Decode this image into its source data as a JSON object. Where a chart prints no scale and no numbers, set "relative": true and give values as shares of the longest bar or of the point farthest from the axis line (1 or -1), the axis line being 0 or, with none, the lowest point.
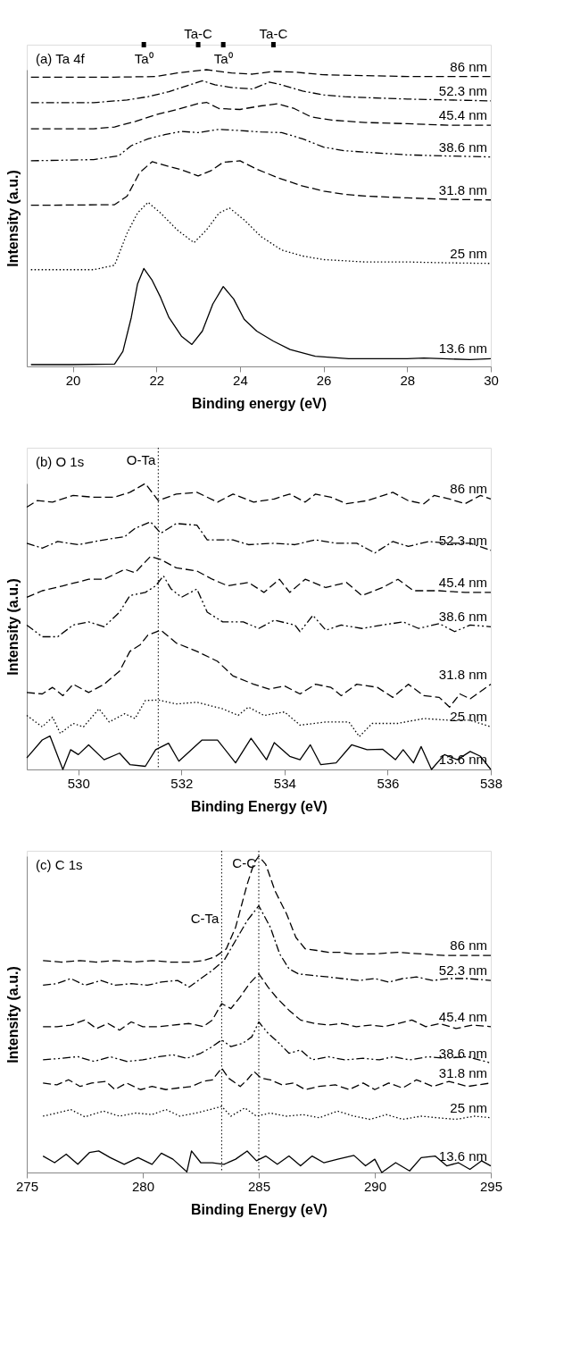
{
  "chart_data": [
    {
      "type": "line",
      "relative": true,
      "xlabel": "Binding energy (eV)",
      "ylabel": "Intensity (a.u.)",
      "xlim": [
        18.9,
        30
      ],
      "xticks": [
        20,
        22,
        24,
        26,
        28,
        30
      ],
      "annotations": [
        "(a) Ta 4f"
      ],
      "ref_lines": [
        {
          "axis": "x",
          "value": 21.7,
          "label": "Ta⁰",
          "color": "#000000"
        },
        {
          "axis": "x",
          "value": 23.0,
          "label": "Ta-C",
          "color": "#000000"
        },
        {
          "axis": "x",
          "value": 23.6,
          "label": "Ta⁰",
          "color": "#000000"
        },
        {
          "axis": "x",
          "value": 24.8,
          "label": "Ta-C",
          "color": "#000000"
        }
      ],
      "series": [
        {
          "name": "13.6 nm",
          "color": "#000000",
          "line_style": "solid",
          "x": [
            19,
            20,
            21,
            21.2,
            21.4,
            21.55,
            21.7,
            21.9,
            22.1,
            22.3,
            22.6,
            22.85,
            23.1,
            23.35,
            23.6,
            23.85,
            24.1,
            24.4,
            24.8,
            25.2,
            25.8,
            26.6,
            28,
            28.4,
            29.5,
            30
          ],
          "values": [
            0.006,
            0.006,
            0.008,
            0.051,
            0.165,
            0.278,
            0.33,
            0.29,
            0.233,
            0.165,
            0.102,
            0.074,
            0.119,
            0.21,
            0.269,
            0.227,
            0.159,
            0.119,
            0.085,
            0.057,
            0.034,
            0.026,
            0.026,
            0.028,
            0.023,
            0.026
          ]
        },
        {
          "name": "25 nm",
          "color": "#000000",
          "line_style": "dotted",
          "x": [
            19,
            20.5,
            21.0,
            21.3,
            21.55,
            21.8,
            22.1,
            22.5,
            22.9,
            23.2,
            23.5,
            23.75,
            24.1,
            24.5,
            25.0,
            25.5,
            26,
            27,
            28,
            29,
            30
          ],
          "values": [
            0.326,
            0.326,
            0.341,
            0.449,
            0.517,
            0.553,
            0.517,
            0.46,
            0.417,
            0.46,
            0.517,
            0.534,
            0.494,
            0.438,
            0.392,
            0.372,
            0.36,
            0.352,
            0.352,
            0.349,
            0.347
          ]
        },
        {
          "name": "31.8 nm",
          "color": "#000000",
          "line_style": "dashed",
          "x": [
            19,
            21,
            21.3,
            21.6,
            21.9,
            22.3,
            22.6,
            23.0,
            23.3,
            23.6,
            24.0,
            24.4,
            24.9,
            25.5,
            26,
            26.5,
            27,
            28,
            29,
            30
          ],
          "values": [
            0.543,
            0.545,
            0.574,
            0.653,
            0.69,
            0.674,
            0.663,
            0.642,
            0.659,
            0.688,
            0.693,
            0.665,
            0.636,
            0.608,
            0.591,
            0.58,
            0.574,
            0.568,
            0.563,
            0.561
          ]
        },
        {
          "name": "38.6 nm",
          "color": "#000000",
          "line_style": "dashdotdot",
          "x": [
            19,
            20.5,
            21.1,
            21.4,
            21.8,
            22.2,
            22.6,
            23.0,
            23.5,
            24,
            24.5,
            25.0,
            25.5,
            26,
            26.5,
            27,
            28,
            29,
            30
          ],
          "values": [
            0.693,
            0.697,
            0.71,
            0.744,
            0.767,
            0.781,
            0.792,
            0.788,
            0.799,
            0.795,
            0.79,
            0.788,
            0.767,
            0.739,
            0.727,
            0.722,
            0.713,
            0.709,
            0.706
          ]
        },
        {
          "name": "45.4 nm",
          "color": "#000000",
          "line_style": "dashed",
          "x": [
            19,
            20.5,
            21,
            21.5,
            22,
            22.5,
            23.0,
            23.2,
            23.5,
            24,
            24.5,
            24.9,
            25.3,
            25.7,
            26.2,
            27,
            28,
            29,
            30
          ],
          "values": [
            0.801,
            0.801,
            0.807,
            0.826,
            0.849,
            0.866,
            0.886,
            0.89,
            0.869,
            0.866,
            0.878,
            0.885,
            0.869,
            0.841,
            0.83,
            0.822,
            0.818,
            0.813,
            0.813
          ]
        },
        {
          "name": "52.3 nm",
          "color": "#000000",
          "line_style": "dashdot",
          "x": [
            19,
            20.5,
            21.3,
            21.8,
            22.3,
            22.8,
            23.1,
            23.4,
            23.8,
            24.3,
            24.7,
            25,
            25.5,
            26,
            26.5,
            27,
            28,
            29,
            30
          ],
          "values": [
            0.889,
            0.889,
            0.898,
            0.909,
            0.926,
            0.949,
            0.963,
            0.949,
            0.94,
            0.935,
            0.958,
            0.949,
            0.928,
            0.915,
            0.909,
            0.906,
            0.901,
            0.898,
            0.895
          ]
        },
        {
          "name": "86 nm",
          "color": "#000000",
          "line_style": "dashed",
          "x": [
            19,
            21,
            22,
            22.5,
            23.2,
            23.8,
            24.3,
            24.8,
            25.3,
            26,
            27,
            28,
            30
          ],
          "values": [
            0.975,
            0.975,
            0.977,
            0.989,
            1.0,
            0.989,
            0.985,
            0.994,
            0.992,
            0.983,
            0.98,
            0.977,
            0.977
          ]
        }
      ]
    },
    {
      "type": "line",
      "relative": true,
      "xlabel": "Binding Energy (eV)",
      "ylabel": "Intensity (a.u.)",
      "xlim": [
        529,
        538
      ],
      "xticks": [
        530,
        532,
        534,
        536,
        538
      ],
      "annotations": [
        "(b) O 1s"
      ],
      "ref_lines": [
        {
          "axis": "x",
          "value": 531.55,
          "label": "O-Ta",
          "line_style": "dotted",
          "color": "#000000"
        }
      ],
      "series": [
        {
          "name": "13.6 nm",
          "color": "#000000",
          "line_style": "solid",
          "x": [
            529,
            529.3,
            529.45,
            529.7,
            529.85,
            530.0,
            530.2,
            530.5,
            530.8,
            531.0,
            531.3,
            531.5,
            531.75,
            531.95,
            532.4,
            532.7,
            533.05,
            533.35,
            533.65,
            533.8,
            534.1,
            534.3,
            534.5,
            534.7,
            535.0,
            535.3,
            535.6,
            535.9,
            536.15,
            536.3,
            536.5,
            536.65,
            536.85,
            537.1,
            537.35,
            537.6,
            537.8,
            538
          ],
          "values": [
            0.04,
            0.103,
            0.117,
            0.0,
            0.069,
            0.052,
            0.086,
            0.034,
            0.057,
            0.017,
            0.011,
            0.069,
            0.092,
            0.029,
            0.103,
            0.103,
            0.023,
            0.109,
            0.034,
            0.094,
            0.046,
            0.034,
            0.086,
            0.017,
            0.023,
            0.086,
            0.069,
            0.071,
            0.034,
            0.069,
            0.023,
            0.08,
            0.0,
            0.052,
            0.034,
            0.063,
            0.046,
            0.0
          ]
        },
        {
          "name": "25 nm",
          "color": "#000000",
          "line_style": "dotted",
          "x": [
            529,
            529.3,
            529.5,
            529.65,
            529.9,
            530.1,
            530.4,
            530.6,
            530.9,
            531.1,
            531.3,
            531.55,
            531.9,
            532.3,
            532.8,
            533.1,
            533.3,
            533.6,
            534.0,
            534.3,
            534.8,
            535.25,
            535.45,
            535.7,
            536.2,
            536.7,
            537.2,
            537.6,
            538
          ],
          "values": [
            0.189,
            0.149,
            0.183,
            0.126,
            0.161,
            0.149,
            0.212,
            0.166,
            0.195,
            0.178,
            0.241,
            0.243,
            0.229,
            0.235,
            0.212,
            0.189,
            0.218,
            0.189,
            0.201,
            0.155,
            0.166,
            0.166,
            0.115,
            0.161,
            0.161,
            0.178,
            0.172,
            0.172,
            0.149
          ]
        },
        {
          "name": "31.8 nm",
          "color": "#000000",
          "line_style": "dashed",
          "x": [
            529,
            529.3,
            529.5,
            529.7,
            529.9,
            530.2,
            530.5,
            530.8,
            531.0,
            531.2,
            531.35,
            531.6,
            531.9,
            532.3,
            532.7,
            533.0,
            533.4,
            533.7,
            534.0,
            534.3,
            534.6,
            534.9,
            535.1,
            535.4,
            535.8,
            536.1,
            536.4,
            536.7,
            537.0,
            537.2,
            537.4,
            537.6,
            538
          ],
          "values": [
            0.269,
            0.264,
            0.287,
            0.258,
            0.298,
            0.269,
            0.298,
            0.344,
            0.413,
            0.436,
            0.47,
            0.487,
            0.442,
            0.413,
            0.378,
            0.327,
            0.298,
            0.281,
            0.292,
            0.264,
            0.298,
            0.287,
            0.258,
            0.298,
            0.287,
            0.252,
            0.298,
            0.258,
            0.252,
            0.218,
            0.264,
            0.247,
            0.298
          ]
        },
        {
          "name": "38.6 nm",
          "color": "#000000",
          "line_style": "dashdotdot",
          "x": [
            529,
            529.3,
            529.6,
            529.9,
            530.2,
            530.5,
            530.8,
            531.0,
            531.3,
            531.5,
            531.65,
            531.8,
            532.0,
            532.3,
            532.5,
            532.8,
            533.2,
            533.5,
            533.8,
            534.2,
            534.3,
            534.55,
            534.8,
            535.1,
            535.5,
            535.9,
            536.3,
            536.6,
            537.0,
            537.3,
            537.6,
            538
          ],
          "values": [
            0.505,
            0.464,
            0.464,
            0.505,
            0.516,
            0.499,
            0.55,
            0.608,
            0.619,
            0.642,
            0.677,
            0.631,
            0.602,
            0.631,
            0.55,
            0.516,
            0.516,
            0.493,
            0.522,
            0.505,
            0.482,
            0.539,
            0.487,
            0.505,
            0.493,
            0.505,
            0.516,
            0.493,
            0.51,
            0.482,
            0.505,
            0.499
          ]
        },
        {
          "name": "45.4 nm",
          "color": "#000000",
          "line_style": "dashed",
          "x": [
            529,
            529.3,
            529.7,
            530.2,
            530.5,
            530.9,
            531.1,
            531.4,
            531.6,
            531.9,
            532.3,
            532.6,
            532.9,
            533.3,
            533.6,
            533.9,
            534.1,
            534.4,
            534.8,
            535.2,
            535.5,
            535.9,
            536.2,
            536.5,
            537,
            537.5,
            538
          ],
          "values": [
            0.602,
            0.625,
            0.642,
            0.665,
            0.665,
            0.7,
            0.688,
            0.745,
            0.734,
            0.705,
            0.694,
            0.665,
            0.642,
            0.654,
            0.619,
            0.665,
            0.619,
            0.665,
            0.636,
            0.654,
            0.608,
            0.636,
            0.665,
            0.625,
            0.625,
            0.619,
            0.619
          ]
        },
        {
          "name": "52.3 nm",
          "color": "#000000",
          "line_style": "dashdot",
          "x": [
            529,
            529.3,
            529.6,
            530.0,
            530.5,
            530.9,
            531.1,
            531.4,
            531.6,
            531.9,
            532.3,
            532.5,
            533.0,
            533.3,
            533.8,
            534.2,
            534.6,
            535.0,
            535.4,
            535.75,
            536.1,
            536.4,
            536.8,
            537.2,
            537.6,
            538
          ],
          "values": [
            0.791,
            0.774,
            0.797,
            0.786,
            0.803,
            0.814,
            0.843,
            0.866,
            0.826,
            0.86,
            0.854,
            0.803,
            0.803,
            0.786,
            0.791,
            0.786,
            0.803,
            0.791,
            0.791,
            0.757,
            0.797,
            0.78,
            0.797,
            0.791,
            0.791,
            0.766
          ]
        },
        {
          "name": "86 nm",
          "color": "#000000",
          "line_style": "dashed",
          "x": [
            529,
            529.2,
            529.5,
            529.9,
            530.3,
            530.7,
            531.0,
            531.3,
            531.55,
            531.9,
            532.3,
            532.7,
            533.0,
            533.4,
            533.8,
            534.1,
            534.4,
            534.6,
            534.9,
            535.2,
            535.6,
            536.1,
            536.4,
            536.7,
            536.9,
            537.2,
            537.5,
            537.8,
            538
          ],
          "values": [
            0.917,
            0.94,
            0.935,
            0.958,
            0.952,
            0.952,
            0.969,
            1.0,
            0.94,
            0.963,
            0.969,
            0.935,
            0.963,
            0.935,
            0.946,
            0.963,
            0.935,
            0.963,
            0.952,
            0.929,
            0.94,
            0.969,
            0.94,
            0.929,
            0.958,
            0.946,
            0.929,
            0.958,
            0.946
          ]
        }
      ]
    },
    {
      "type": "line",
      "relative": true,
      "xlabel": "Binding Energy (eV)",
      "ylabel": "Intensity (a.u.)",
      "xlim": [
        275,
        295
      ],
      "xticks": [
        275,
        280,
        285,
        290,
        295
      ],
      "annotations": [
        "(c) C 1s"
      ],
      "ref_lines": [
        {
          "axis": "x",
          "value": 285.0,
          "label": "C-C",
          "line_style": "dotted",
          "color": "#000000"
        },
        {
          "axis": "x",
          "value": 283.4,
          "label": "C-Ta",
          "line_style": "dotted",
          "color": "#000000"
        }
      ],
      "series": [
        {
          "name": "13.6 nm",
          "color": "#000000",
          "line_style": "solid",
          "x": [
            275.7,
            276.2,
            276.7,
            277.2,
            277.7,
            278.1,
            278.6,
            279.2,
            279.8,
            280.4,
            280.8,
            281.3,
            281.9,
            282.1,
            282.5,
            283.0,
            283.5,
            284.0,
            284.5,
            284.9,
            285.3,
            285.8,
            286.3,
            286.8,
            287.3,
            287.8,
            288.4,
            289.1,
            289.6,
            290.0,
            290.3,
            290.9,
            291.5,
            292.0,
            292.6,
            293.1,
            293.6,
            294.1,
            294.6,
            295
          ],
          "values": [
            0.052,
            0.031,
            0.058,
            0.026,
            0.063,
            0.068,
            0.047,
            0.026,
            0.047,
            0.026,
            0.061,
            0.042,
            0.002,
            0.068,
            0.031,
            0.031,
            0.026,
            0.042,
            0.068,
            0.037,
            0.052,
            0.026,
            0.052,
            0.021,
            0.052,
            0.031,
            0.042,
            0.054,
            0.021,
            0.042,
            0.0,
            0.031,
            0.005,
            0.047,
            0.052,
            0.021,
            0.031,
            0.01,
            0.037,
            0.021
          ]
        },
        {
          "name": "25 nm",
          "color": "#000000",
          "line_style": "dotted",
          "x": [
            275.7,
            276.3,
            276.9,
            277.5,
            278.3,
            279,
            279.7,
            280.4,
            281.0,
            281.6,
            282.3,
            282.9,
            283.4,
            283.8,
            284.4,
            284.9,
            285.5,
            286.2,
            286.9,
            287.6,
            288.4,
            289.1,
            289.8,
            290.5,
            291.2,
            292.0,
            292.7,
            293.5,
            294.3,
            295
          ],
          "values": [
            0.178,
            0.188,
            0.199,
            0.176,
            0.194,
            0.178,
            0.188,
            0.183,
            0.199,
            0.178,
            0.188,
            0.199,
            0.209,
            0.178,
            0.204,
            0.178,
            0.188,
            0.178,
            0.183,
            0.173,
            0.194,
            0.178,
            0.168,
            0.183,
            0.168,
            0.178,
            0.173,
            0.168,
            0.178,
            0.173
          ]
        },
        {
          "name": "31.8 nm",
          "color": "#000000",
          "line_style": "dashed",
          "x": [
            275.7,
            276.3,
            276.8,
            277.3,
            277.8,
            278.4,
            278.8,
            279.3,
            279.9,
            280.4,
            281.0,
            281.5,
            282.1,
            282.6,
            283.0,
            283.4,
            283.7,
            284.2,
            284.5,
            284.8,
            285.1,
            285.5,
            286.0,
            286.5,
            287.0,
            287.6,
            288.3,
            288.9,
            289.5,
            290.0,
            290.6,
            291.2,
            291.8,
            292.5,
            293.2,
            294.0,
            295
          ],
          "values": [
            0.283,
            0.277,
            0.293,
            0.272,
            0.283,
            0.288,
            0.262,
            0.283,
            0.262,
            0.272,
            0.262,
            0.267,
            0.272,
            0.288,
            0.293,
            0.33,
            0.298,
            0.272,
            0.293,
            0.319,
            0.298,
            0.293,
            0.277,
            0.283,
            0.262,
            0.272,
            0.277,
            0.262,
            0.283,
            0.262,
            0.283,
            0.267,
            0.293,
            0.272,
            0.288,
            0.272,
            0.283
          ]
        },
        {
          "name": "38.6 nm",
          "color": "#000000",
          "line_style": "dashdotdot",
          "x": [
            275.7,
            276.5,
            277.2,
            277.9,
            278.6,
            279.3,
            280.0,
            280.7,
            281.3,
            281.9,
            282.5,
            283.0,
            283.4,
            283.8,
            284.3,
            284.7,
            285.0,
            285.4,
            285.8,
            286.3,
            286.8,
            287.3,
            288.0,
            288.7,
            289.5,
            290.2,
            290.8,
            291.5,
            292.3,
            293.0,
            294.0,
            295
          ],
          "values": [
            0.356,
            0.361,
            0.366,
            0.351,
            0.366,
            0.351,
            0.356,
            0.366,
            0.372,
            0.361,
            0.377,
            0.398,
            0.419,
            0.398,
            0.408,
            0.429,
            0.476,
            0.44,
            0.414,
            0.377,
            0.387,
            0.356,
            0.366,
            0.356,
            0.361,
            0.356,
            0.366,
            0.356,
            0.366,
            0.361,
            0.366,
            0.346
          ]
        },
        {
          "name": "45.4 nm",
          "color": "#000000",
          "line_style": "dashed",
          "x": [
            275.7,
            276.3,
            276.9,
            277.5,
            278.0,
            278.5,
            279.0,
            279.5,
            280.0,
            280.7,
            281.3,
            282.0,
            282.6,
            283.0,
            283.4,
            283.8,
            284.2,
            284.6,
            285.0,
            285.4,
            285.8,
            286.3,
            286.8,
            287.4,
            288.0,
            288.6,
            289.2,
            289.8,
            290.4,
            291.0,
            291.6,
            292.2,
            292.8,
            293.5,
            294.2,
            295
          ],
          "values": [
            0.461,
            0.461,
            0.466,
            0.482,
            0.455,
            0.471,
            0.45,
            0.476,
            0.461,
            0.461,
            0.466,
            0.471,
            0.461,
            0.482,
            0.534,
            0.518,
            0.555,
            0.597,
            0.628,
            0.586,
            0.55,
            0.513,
            0.482,
            0.471,
            0.466,
            0.471,
            0.461,
            0.466,
            0.461,
            0.471,
            0.482,
            0.461,
            0.471,
            0.455,
            0.466,
            0.461
          ]
        },
        {
          "name": "52.3 nm",
          "color": "#000000",
          "line_style": "dashdot",
          "x": [
            275.7,
            276.3,
            276.9,
            277.5,
            278.2,
            278.8,
            279.5,
            280.2,
            280.8,
            281.5,
            282.0,
            282.5,
            283.0,
            283.5,
            284.0,
            284.5,
            285.0,
            285.5,
            285.9,
            286.3,
            286.7,
            287.3,
            288.0,
            288.6,
            289.3,
            290.0,
            290.6,
            291.2,
            291.8,
            292.5,
            293.2,
            294.0,
            295
          ],
          "values": [
            0.592,
            0.597,
            0.613,
            0.592,
            0.607,
            0.592,
            0.597,
            0.592,
            0.602,
            0.607,
            0.586,
            0.613,
            0.639,
            0.67,
            0.733,
            0.796,
            0.843,
            0.775,
            0.691,
            0.644,
            0.628,
            0.623,
            0.618,
            0.613,
            0.607,
            0.613,
            0.602,
            0.613,
            0.618,
            0.607,
            0.613,
            0.613,
            0.607
          ]
        },
        {
          "name": "86 nm",
          "color": "#000000",
          "line_style": "dashed",
          "x": [
            275.7,
            276.5,
            277.3,
            278.0,
            278.8,
            279.6,
            280.4,
            281.2,
            282.0,
            282.6,
            283.1,
            283.6,
            284.0,
            284.5,
            284.8,
            285.0,
            285.3,
            285.7,
            286.2,
            286.6,
            287.0,
            287.5,
            288.0,
            288.5,
            289.0,
            290.0,
            291.0,
            292.0,
            293.0,
            294.0,
            295
          ],
          "values": [
            0.67,
            0.665,
            0.67,
            0.665,
            0.67,
            0.665,
            0.67,
            0.665,
            0.665,
            0.67,
            0.681,
            0.707,
            0.775,
            0.911,
            0.979,
            1.0,
            0.974,
            0.89,
            0.817,
            0.743,
            0.707,
            0.702,
            0.696,
            0.696,
            0.691,
            0.691,
            0.696,
            0.691,
            0.686,
            0.686,
            0.686
          ]
        }
      ]
    }
  ]
}
